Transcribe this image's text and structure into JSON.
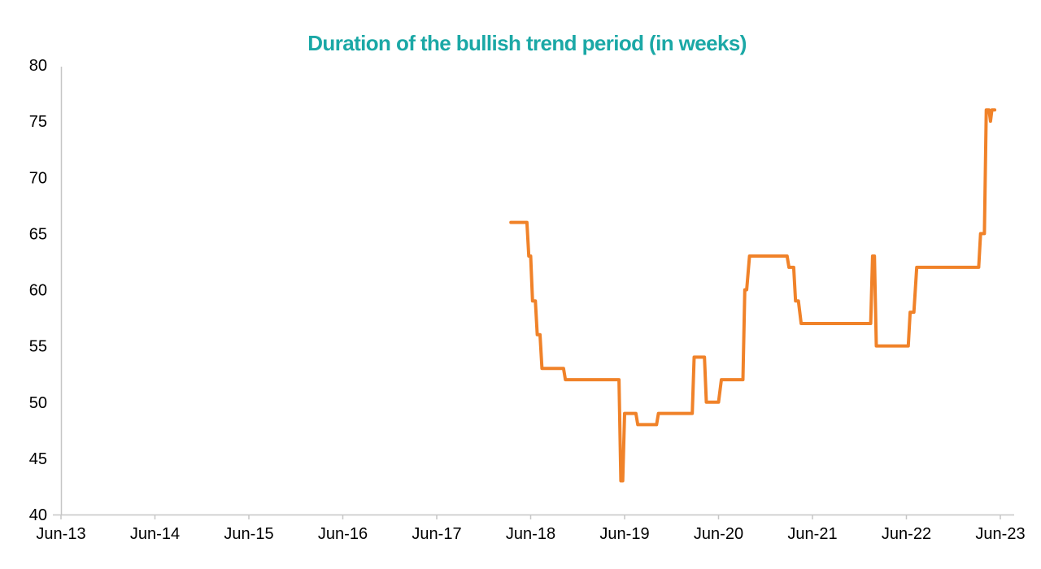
{
  "page": {
    "background": "#ffffff"
  },
  "chart_data": {
    "type": "line",
    "title": "Duration of the bullish trend period (in weeks)",
    "title_color": "#1BA8A6",
    "line_color": "#F08229",
    "axis_color": "#C6C6C6",
    "label_color": "#000000",
    "xlabel": "",
    "ylabel": "",
    "grid": false,
    "legend": null,
    "ylim": [
      40,
      80
    ],
    "xlim": [
      2013.42,
      2023.42
    ],
    "y_ticks": [
      40,
      45,
      50,
      55,
      60,
      65,
      70,
      75,
      80
    ],
    "x_ticks": [
      {
        "label": "Jun-13",
        "value": 2013.42
      },
      {
        "label": "Jun-14",
        "value": 2014.42
      },
      {
        "label": "Jun-15",
        "value": 2015.42
      },
      {
        "label": "Jun-16",
        "value": 2016.42
      },
      {
        "label": "Jun-17",
        "value": 2017.42
      },
      {
        "label": "Jun-18",
        "value": 2018.42
      },
      {
        "label": "Jun-19",
        "value": 2019.42
      },
      {
        "label": "Jun-20",
        "value": 2020.42
      },
      {
        "label": "Jun-21",
        "value": 2021.42
      },
      {
        "label": "Jun-22",
        "value": 2022.42
      },
      {
        "label": "Jun-23",
        "value": 2023.42
      }
    ],
    "series": [
      {
        "name": "Duration of the bullish trend period (weeks)",
        "points": [
          [
            2018.21,
            66
          ],
          [
            2018.38,
            66
          ],
          [
            2018.4,
            63
          ],
          [
            2018.42,
            63
          ],
          [
            2018.44,
            59
          ],
          [
            2018.47,
            59
          ],
          [
            2018.49,
            56
          ],
          [
            2018.52,
            56
          ],
          [
            2018.54,
            53
          ],
          [
            2018.77,
            53
          ],
          [
            2018.79,
            52
          ],
          [
            2019.36,
            52
          ],
          [
            2019.38,
            43
          ],
          [
            2019.4,
            43
          ],
          [
            2019.42,
            49
          ],
          [
            2019.54,
            49
          ],
          [
            2019.56,
            48
          ],
          [
            2019.76,
            48
          ],
          [
            2019.78,
            49
          ],
          [
            2020.14,
            49
          ],
          [
            2020.16,
            54
          ],
          [
            2020.27,
            54
          ],
          [
            2020.29,
            50
          ],
          [
            2020.42,
            50
          ],
          [
            2020.45,
            52
          ],
          [
            2020.68,
            52
          ],
          [
            2020.7,
            60
          ],
          [
            2020.72,
            60
          ],
          [
            2020.75,
            63
          ],
          [
            2021.15,
            63
          ],
          [
            2021.17,
            62
          ],
          [
            2021.22,
            62
          ],
          [
            2021.24,
            59
          ],
          [
            2021.27,
            59
          ],
          [
            2021.3,
            57
          ],
          [
            2022.04,
            57
          ],
          [
            2022.06,
            63
          ],
          [
            2022.08,
            63
          ],
          [
            2022.1,
            55
          ],
          [
            2022.44,
            55
          ],
          [
            2022.46,
            58
          ],
          [
            2022.5,
            58
          ],
          [
            2022.53,
            62
          ],
          [
            2023.19,
            62
          ],
          [
            2023.21,
            65
          ],
          [
            2023.25,
            65
          ],
          [
            2023.27,
            76
          ],
          [
            2023.3,
            76
          ],
          [
            2023.315,
            75
          ],
          [
            2023.33,
            76
          ],
          [
            2023.36,
            76
          ]
        ]
      }
    ]
  }
}
